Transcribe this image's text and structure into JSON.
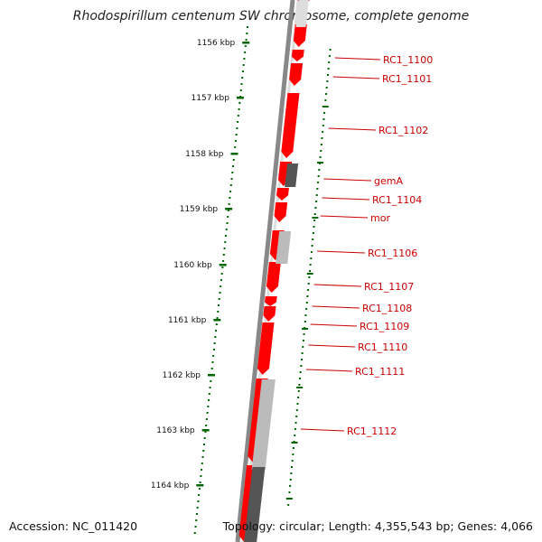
{
  "title": "Rhodospirillum centenum SW chromosome, complete genome",
  "footer": {
    "accession": "Accession: NC_011420",
    "summary": "Topology: circular; Length: 4,355,543 bp; Genes: 4,066"
  },
  "colors": {
    "backbone": "#777777",
    "gene_forward": "#ff0000",
    "gene_dark": "#555555",
    "gene_light": "#bbbbbb",
    "tick": "#006600",
    "label": "#cc0000"
  },
  "ticks": [
    "1156 kbp",
    "1157 kbp",
    "1158 kbp",
    "1159 kbp",
    "1160 kbp",
    "1161 kbp",
    "1162 kbp",
    "1163 kbp",
    "1164 kbp"
  ],
  "genes": [
    "RC1_1100",
    "RC1_1101",
    "RC1_1102",
    "gemA",
    "RC1_1104",
    "mor",
    "RC1_1106",
    "RC1_1107",
    "RC1_1108",
    "RC1_1109",
    "RC1_1110",
    "RC1_1111",
    "RC1_1112"
  ]
}
